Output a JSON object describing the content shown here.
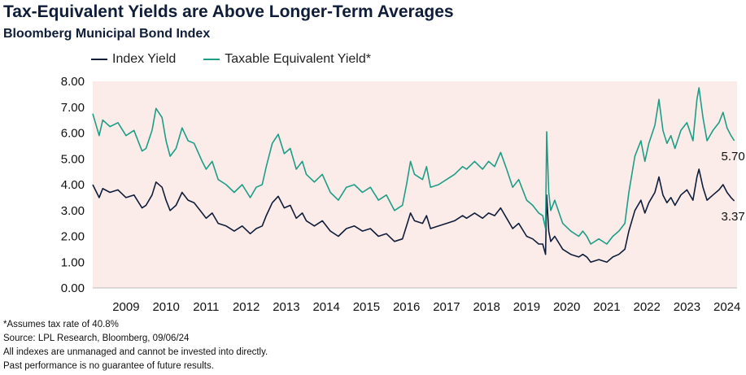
{
  "chart_data": {
    "type": "line",
    "title": "Tax-Equivalent Yields are Above Longer-Term Averages",
    "subtitle": "Bloomberg Municipal Bond Index",
    "xlabel": "",
    "ylabel": "",
    "ylim": [
      0,
      8
    ],
    "y_ticks": [
      "0.00",
      "1.00",
      "2.00",
      "3.00",
      "4.00",
      "5.00",
      "6.00",
      "7.00",
      "8.00"
    ],
    "x_range": [
      2008.67,
      2024.75
    ],
    "x_ticks": [
      "2009",
      "2010",
      "2011",
      "2012",
      "2013",
      "2014",
      "2015",
      "2016",
      "2017",
      "2018",
      "2019",
      "2020",
      "2021",
      "2022",
      "2023",
      "2024"
    ],
    "grid": false,
    "legend_position": "top-left",
    "series": [
      {
        "name": "Index Yield",
        "color": "#0f1d38",
        "end_label": "3.37",
        "points": [
          [
            2008.67,
            4.0
          ],
          [
            2008.83,
            3.5
          ],
          [
            2008.92,
            3.85
          ],
          [
            2009.1,
            3.7
          ],
          [
            2009.3,
            3.8
          ],
          [
            2009.5,
            3.5
          ],
          [
            2009.7,
            3.6
          ],
          [
            2009.9,
            3.1
          ],
          [
            2010.0,
            3.2
          ],
          [
            2010.15,
            3.6
          ],
          [
            2010.25,
            4.1
          ],
          [
            2010.4,
            3.9
          ],
          [
            2010.5,
            3.4
          ],
          [
            2010.6,
            3.0
          ],
          [
            2010.75,
            3.2
          ],
          [
            2010.9,
            3.7
          ],
          [
            2011.05,
            3.4
          ],
          [
            2011.2,
            3.3
          ],
          [
            2011.4,
            2.9
          ],
          [
            2011.5,
            2.7
          ],
          [
            2011.65,
            2.9
          ],
          [
            2011.8,
            2.5
          ],
          [
            2012.0,
            2.4
          ],
          [
            2012.2,
            2.2
          ],
          [
            2012.4,
            2.4
          ],
          [
            2012.6,
            2.1
          ],
          [
            2012.75,
            2.3
          ],
          [
            2012.9,
            2.4
          ],
          [
            2013.0,
            2.8
          ],
          [
            2013.15,
            3.3
          ],
          [
            2013.3,
            3.55
          ],
          [
            2013.45,
            3.1
          ],
          [
            2013.6,
            3.2
          ],
          [
            2013.75,
            2.7
          ],
          [
            2013.9,
            2.9
          ],
          [
            2014.0,
            2.6
          ],
          [
            2014.2,
            2.4
          ],
          [
            2014.4,
            2.6
          ],
          [
            2014.6,
            2.2
          ],
          [
            2014.8,
            2.0
          ],
          [
            2015.0,
            2.3
          ],
          [
            2015.2,
            2.4
          ],
          [
            2015.4,
            2.2
          ],
          [
            2015.6,
            2.3
          ],
          [
            2015.8,
            2.0
          ],
          [
            2016.0,
            2.1
          ],
          [
            2016.2,
            1.8
          ],
          [
            2016.4,
            1.9
          ],
          [
            2016.5,
            2.4
          ],
          [
            2016.6,
            2.9
          ],
          [
            2016.7,
            2.6
          ],
          [
            2016.9,
            2.5
          ],
          [
            2017.0,
            2.8
          ],
          [
            2017.1,
            2.3
          ],
          [
            2017.3,
            2.4
          ],
          [
            2017.5,
            2.5
          ],
          [
            2017.7,
            2.6
          ],
          [
            2017.9,
            2.8
          ],
          [
            2018.0,
            2.7
          ],
          [
            2018.2,
            2.9
          ],
          [
            2018.4,
            2.7
          ],
          [
            2018.55,
            2.9
          ],
          [
            2018.7,
            2.8
          ],
          [
            2018.85,
            3.1
          ],
          [
            2019.0,
            2.7
          ],
          [
            2019.15,
            2.3
          ],
          [
            2019.3,
            2.5
          ],
          [
            2019.5,
            2.0
          ],
          [
            2019.65,
            1.9
          ],
          [
            2019.8,
            1.7
          ],
          [
            2019.9,
            1.7
          ],
          [
            2019.97,
            1.3
          ],
          [
            2020.0,
            3.6
          ],
          [
            2020.05,
            2.2
          ],
          [
            2020.1,
            1.8
          ],
          [
            2020.2,
            2.0
          ],
          [
            2020.4,
            1.5
          ],
          [
            2020.6,
            1.3
          ],
          [
            2020.8,
            1.2
          ],
          [
            2020.9,
            1.3
          ],
          [
            2021.0,
            1.2
          ],
          [
            2021.1,
            1.0
          ],
          [
            2021.3,
            1.1
          ],
          [
            2021.5,
            1.0
          ],
          [
            2021.65,
            1.2
          ],
          [
            2021.8,
            1.3
          ],
          [
            2021.95,
            1.5
          ],
          [
            2022.05,
            2.2
          ],
          [
            2022.2,
            3.0
          ],
          [
            2022.35,
            3.4
          ],
          [
            2022.45,
            2.9
          ],
          [
            2022.55,
            3.3
          ],
          [
            2022.7,
            3.7
          ],
          [
            2022.8,
            4.3
          ],
          [
            2022.9,
            3.6
          ],
          [
            2023.0,
            3.3
          ],
          [
            2023.1,
            3.5
          ],
          [
            2023.2,
            3.2
          ],
          [
            2023.35,
            3.6
          ],
          [
            2023.5,
            3.8
          ],
          [
            2023.65,
            3.4
          ],
          [
            2023.75,
            4.3
          ],
          [
            2023.8,
            4.6
          ],
          [
            2023.9,
            3.9
          ],
          [
            2024.0,
            3.4
          ],
          [
            2024.15,
            3.6
          ],
          [
            2024.3,
            3.8
          ],
          [
            2024.4,
            4.0
          ],
          [
            2024.5,
            3.7
          ],
          [
            2024.6,
            3.5
          ],
          [
            2024.68,
            3.37
          ]
        ]
      },
      {
        "name": "Taxable Equivalent Yield*",
        "color": "#1d9e86",
        "end_label": "5.70",
        "points": [
          [
            2008.67,
            6.75
          ],
          [
            2008.83,
            5.9
          ],
          [
            2008.92,
            6.5
          ],
          [
            2009.1,
            6.25
          ],
          [
            2009.3,
            6.4
          ],
          [
            2009.5,
            5.9
          ],
          [
            2009.7,
            6.1
          ],
          [
            2009.9,
            5.3
          ],
          [
            2010.0,
            5.4
          ],
          [
            2010.15,
            6.1
          ],
          [
            2010.25,
            6.95
          ],
          [
            2010.4,
            6.6
          ],
          [
            2010.5,
            5.7
          ],
          [
            2010.6,
            5.1
          ],
          [
            2010.75,
            5.4
          ],
          [
            2010.9,
            6.2
          ],
          [
            2011.05,
            5.7
          ],
          [
            2011.2,
            5.6
          ],
          [
            2011.4,
            4.9
          ],
          [
            2011.5,
            4.6
          ],
          [
            2011.65,
            4.9
          ],
          [
            2011.8,
            4.2
          ],
          [
            2012.0,
            4.0
          ],
          [
            2012.2,
            3.7
          ],
          [
            2012.4,
            4.0
          ],
          [
            2012.6,
            3.5
          ],
          [
            2012.75,
            3.9
          ],
          [
            2012.9,
            4.0
          ],
          [
            2013.0,
            4.7
          ],
          [
            2013.15,
            5.6
          ],
          [
            2013.3,
            5.95
          ],
          [
            2013.45,
            5.2
          ],
          [
            2013.6,
            5.4
          ],
          [
            2013.75,
            4.6
          ],
          [
            2013.9,
            4.9
          ],
          [
            2014.0,
            4.4
          ],
          [
            2014.2,
            4.1
          ],
          [
            2014.4,
            4.4
          ],
          [
            2014.6,
            3.7
          ],
          [
            2014.8,
            3.4
          ],
          [
            2015.0,
            3.9
          ],
          [
            2015.2,
            4.0
          ],
          [
            2015.4,
            3.7
          ],
          [
            2015.6,
            3.9
          ],
          [
            2015.8,
            3.4
          ],
          [
            2016.0,
            3.6
          ],
          [
            2016.2,
            3.0
          ],
          [
            2016.4,
            3.2
          ],
          [
            2016.5,
            4.0
          ],
          [
            2016.6,
            4.9
          ],
          [
            2016.7,
            4.4
          ],
          [
            2016.9,
            4.2
          ],
          [
            2017.0,
            4.7
          ],
          [
            2017.1,
            3.9
          ],
          [
            2017.3,
            4.0
          ],
          [
            2017.5,
            4.2
          ],
          [
            2017.7,
            4.4
          ],
          [
            2017.9,
            4.7
          ],
          [
            2018.0,
            4.6
          ],
          [
            2018.2,
            4.9
          ],
          [
            2018.4,
            4.6
          ],
          [
            2018.55,
            4.9
          ],
          [
            2018.7,
            4.7
          ],
          [
            2018.85,
            5.25
          ],
          [
            2019.0,
            4.6
          ],
          [
            2019.15,
            3.9
          ],
          [
            2019.3,
            4.2
          ],
          [
            2019.5,
            3.4
          ],
          [
            2019.65,
            3.2
          ],
          [
            2019.8,
            2.9
          ],
          [
            2019.9,
            2.8
          ],
          [
            2019.97,
            2.3
          ],
          [
            2020.0,
            6.05
          ],
          [
            2020.05,
            3.7
          ],
          [
            2020.1,
            3.0
          ],
          [
            2020.2,
            3.4
          ],
          [
            2020.4,
            2.5
          ],
          [
            2020.6,
            2.2
          ],
          [
            2020.8,
            2.0
          ],
          [
            2020.9,
            2.2
          ],
          [
            2021.0,
            2.0
          ],
          [
            2021.1,
            1.7
          ],
          [
            2021.3,
            1.9
          ],
          [
            2021.5,
            1.7
          ],
          [
            2021.65,
            2.0
          ],
          [
            2021.8,
            2.2
          ],
          [
            2021.95,
            2.5
          ],
          [
            2022.05,
            3.7
          ],
          [
            2022.2,
            5.1
          ],
          [
            2022.35,
            5.7
          ],
          [
            2022.45,
            4.9
          ],
          [
            2022.55,
            5.6
          ],
          [
            2022.7,
            6.3
          ],
          [
            2022.8,
            7.3
          ],
          [
            2022.9,
            6.1
          ],
          [
            2023.0,
            5.6
          ],
          [
            2023.1,
            5.9
          ],
          [
            2023.2,
            5.4
          ],
          [
            2023.35,
            6.1
          ],
          [
            2023.5,
            6.4
          ],
          [
            2023.65,
            5.7
          ],
          [
            2023.75,
            7.3
          ],
          [
            2023.8,
            7.75
          ],
          [
            2023.9,
            6.6
          ],
          [
            2024.0,
            5.7
          ],
          [
            2024.15,
            6.1
          ],
          [
            2024.3,
            6.4
          ],
          [
            2024.4,
            6.8
          ],
          [
            2024.5,
            6.2
          ],
          [
            2024.6,
            5.9
          ],
          [
            2024.68,
            5.7
          ]
        ]
      }
    ]
  },
  "footnotes": {
    "line1": "*Assumes tax rate of 40.8%",
    "line2": "Source: LPL Research, Bloomberg, 09/06/24",
    "line3": "All indexes are unmanaged and cannot be invested into directly.",
    "line4": "Past performance is no guarantee of future results."
  },
  "colors": {
    "plot_background": "#fbecea",
    "title": "#0f1d38"
  }
}
